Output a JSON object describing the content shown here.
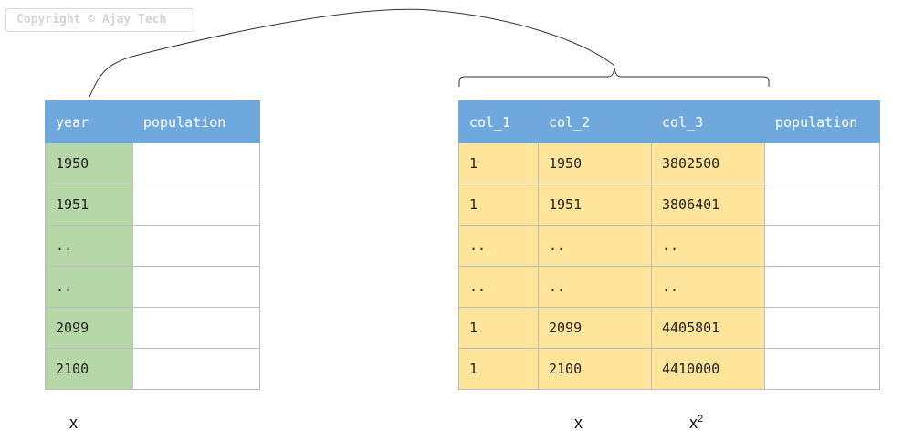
{
  "watermark": "Copyright © Ajay Tech",
  "left_table": {
    "headers": [
      "year",
      "population"
    ],
    "rows": [
      "1950",
      "1951",
      "..",
      "..",
      "2099",
      "2100"
    ],
    "caption": "x"
  },
  "right_table": {
    "headers": [
      "col_1",
      "col_2",
      "col_3",
      "population"
    ],
    "rows": [
      [
        "1",
        "1950",
        "3802500"
      ],
      [
        "1",
        "1951",
        "3806401"
      ],
      [
        "..",
        "..",
        ".."
      ],
      [
        "..",
        "..",
        ".."
      ],
      [
        "1",
        "2099",
        "4405801"
      ],
      [
        "1",
        "2100",
        "4410000"
      ]
    ],
    "caption_x": "x",
    "caption_x2_base": "x",
    "caption_x2_exp": "2"
  },
  "colors": {
    "header": "#6fa8dc",
    "feature_left": "#b6d7a8",
    "feature_right": "#ffe599"
  }
}
